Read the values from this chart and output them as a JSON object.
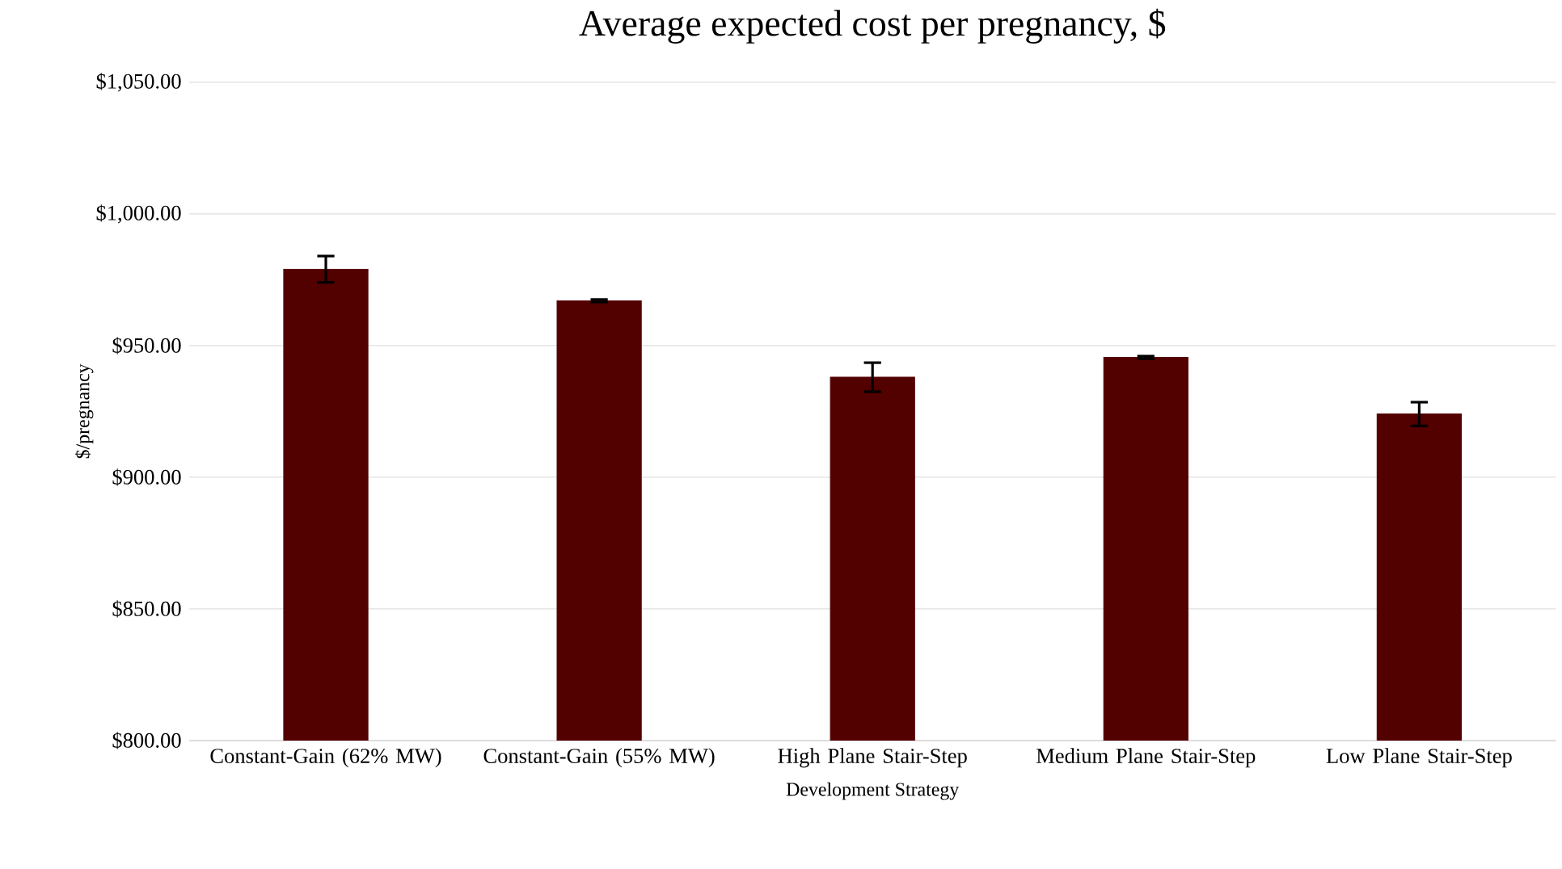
{
  "chart_data": {
    "type": "bar",
    "title": "Average expected cost per pregnancy, $",
    "xlabel": "Development Strategy",
    "ylabel": "$/pregnancy",
    "categories": [
      "Constant-Gain (62% MW)",
      "Constant-Gain (55% MW)",
      "High Plane Stair-Step",
      "Medium Plane Stair-Step",
      "Low Plane Stair-Step"
    ],
    "values": [
      979,
      967,
      938,
      945.5,
      924
    ],
    "errors": [
      5,
      0.5,
      5.5,
      0.5,
      4.5
    ],
    "color": "#530000",
    "ylim": [
      800,
      1050
    ],
    "yticks": [
      {
        "value": 800,
        "label": "$800.00"
      },
      {
        "value": 850,
        "label": "$850.00"
      },
      {
        "value": 900,
        "label": "$900.00"
      },
      {
        "value": 950,
        "label": "$950.00"
      },
      {
        "value": 1000,
        "label": "$1,000.00"
      },
      {
        "value": 1050,
        "label": "$1,050.00"
      }
    ],
    "grid": "y"
  }
}
